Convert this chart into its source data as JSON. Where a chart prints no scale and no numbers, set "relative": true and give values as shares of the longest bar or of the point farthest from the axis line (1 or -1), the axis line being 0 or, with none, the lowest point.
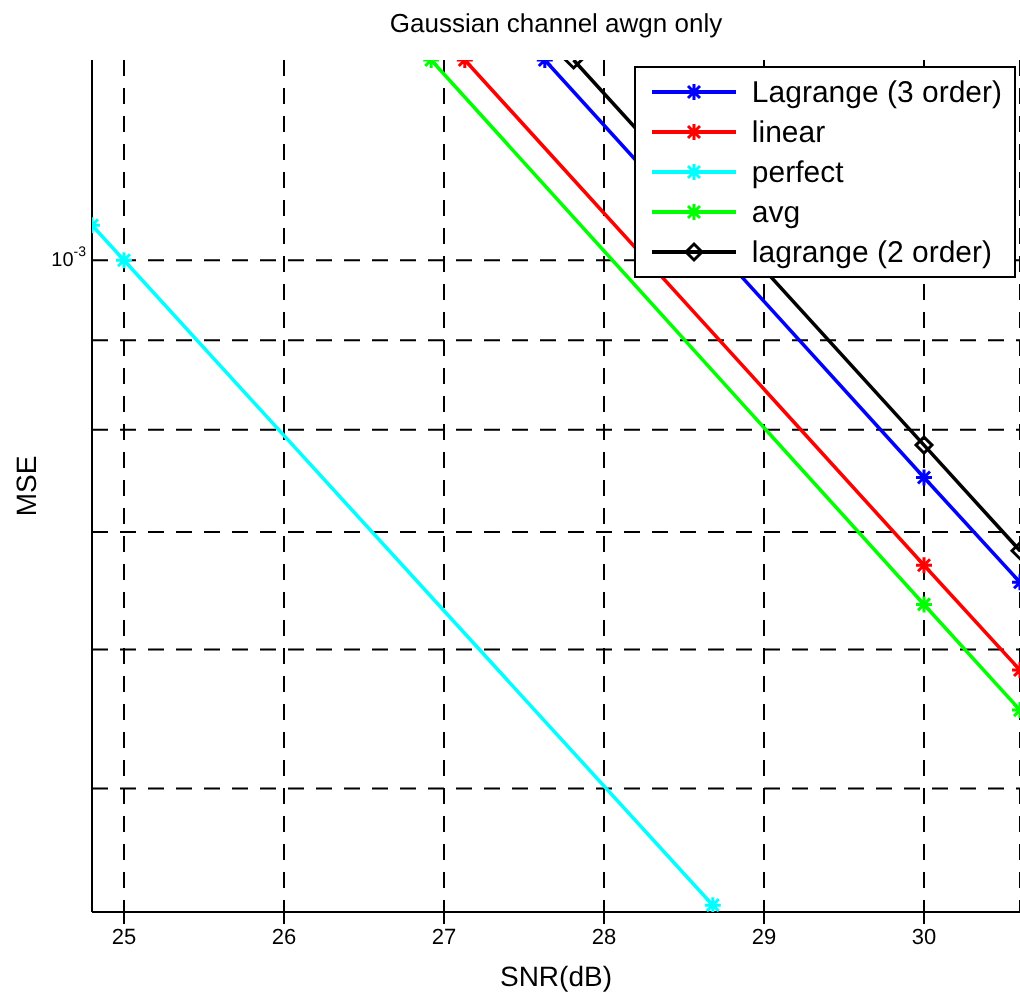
{
  "chart_data": {
    "type": "line",
    "title": "Gaussian channel awgn only",
    "xlabel": "SNR(dB)",
    "ylabel": "MSE",
    "relative": true,
    "grid": "x",
    "legend": "top right",
    "line_style": "solid",
    "xlim": [
      24.8,
      30.6
    ],
    "xticks": [
      25,
      26,
      27,
      28,
      29,
      30
    ],
    "annotations": [
      "10$^{-3}$"
    ],
    "ref_lines": [
      {
        "axis": "y",
        "value": 0.765,
        "color": "#000000",
        "line_style": "dashed"
      },
      {
        "axis": "y",
        "value": 0.671,
        "color": "#000000",
        "line_style": "dashed"
      },
      {
        "axis": "y",
        "value": 0.566,
        "color": "#000000",
        "line_style": "dashed"
      },
      {
        "axis": "y",
        "value": 0.446,
        "color": "#000000",
        "line_style": "dashed"
      },
      {
        "axis": "y",
        "value": 0.308,
        "color": "#000000",
        "line_style": "dashed"
      },
      {
        "axis": "y",
        "value": 0.145,
        "color": "#000000",
        "line_style": "dashed"
      }
    ],
    "series": [
      {
        "name": "Lagrange (3 order)",
        "color": "#0000ff",
        "marker": "cross",
        "x": [
          27.63,
          30,
          30.6
        ],
        "values": [
          1,
          0.51,
          0.387
        ]
      },
      {
        "name": "linear",
        "color": "#ff0000",
        "marker": "cross",
        "x": [
          27.13,
          30,
          30.6
        ],
        "values": [
          1,
          0.407,
          0.284
        ]
      },
      {
        "name": "perfect",
        "color": "#00ffff",
        "marker": "cross",
        "x": [
          24.8,
          25,
          28.68
        ],
        "values": [
          0.806,
          0.765,
          0.008
        ]
      },
      {
        "name": "avg",
        "color": "#00ff00",
        "marker": "cross",
        "x": [
          26.92,
          30,
          30.6
        ],
        "values": [
          1,
          0.361,
          0.237
        ]
      },
      {
        "name": "lagrange (2 order)",
        "color": "#000000",
        "marker": "diamond",
        "x": [
          27.81,
          30,
          30.6
        ],
        "values": [
          1,
          0.548,
          0.424
        ]
      }
    ]
  }
}
